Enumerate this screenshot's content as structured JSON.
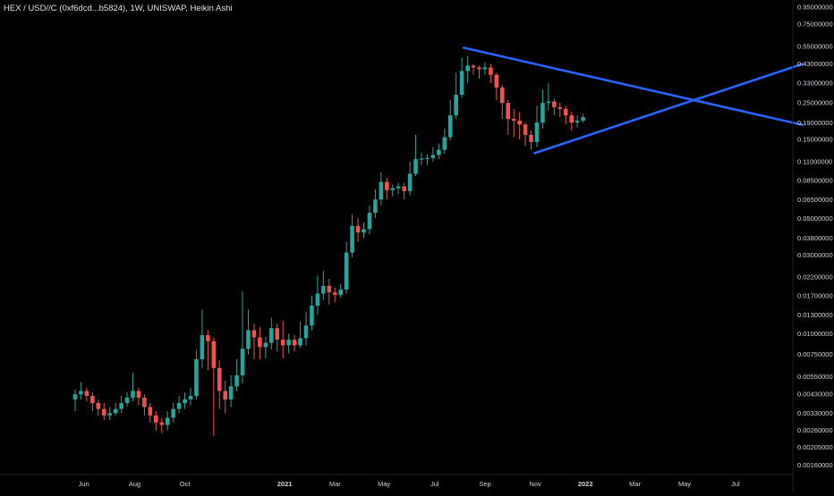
{
  "chart_data": {
    "type": "candlestick",
    "title": "HEX / USD//C (0xf6dcd...b5824), 1W, UNISWAP, Heikin Ashi",
    "y_scale": "log",
    "ylim": [
      0.00142,
      1.05
    ],
    "y_ticks": [
      "0.95000000",
      "0.75000000",
      "0.55000000",
      "0.43000000",
      "0.33000000",
      "0.25000000",
      "0.19000000",
      "0.15000000",
      "0.11000000",
      "0.08500000",
      "0.06500000",
      "0.05000000",
      "0.03800000",
      "0.03000000",
      "0.02200000",
      "0.01700000",
      "0.01300000",
      "0.01000000",
      "0.00750000",
      "0.00550000",
      "0.00430000",
      "0.00330000",
      "0.00260000",
      "0.00205000",
      "0.00160000"
    ],
    "x_ticks": [
      {
        "label": "Jun",
        "bold": false
      },
      {
        "label": "Aug",
        "bold": false
      },
      {
        "label": "Oct",
        "bold": false
      },
      {
        "label": "2021",
        "bold": true
      },
      {
        "label": "Mar",
        "bold": false
      },
      {
        "label": "May",
        "bold": false
      },
      {
        "label": "Jul",
        "bold": false
      },
      {
        "label": "Sep",
        "bold": false
      },
      {
        "label": "Nov",
        "bold": false
      },
      {
        "label": "2022",
        "bold": true
      },
      {
        "label": "Mar",
        "bold": false
      },
      {
        "label": "May",
        "bold": false
      },
      {
        "label": "Jul",
        "bold": false
      }
    ],
    "colors": {
      "up": "#26a69a",
      "down": "#ef5350",
      "trendline": "#2962ff",
      "background": "#000000"
    },
    "candles": [
      [
        0.004,
        0.0043,
        0.0046,
        0.0034
      ],
      [
        0.0043,
        0.0045,
        0.0051,
        0.004
      ],
      [
        0.0045,
        0.0042,
        0.0047,
        0.0039
      ],
      [
        0.0042,
        0.0038,
        0.0044,
        0.0034
      ],
      [
        0.0038,
        0.0035,
        0.004,
        0.0032
      ],
      [
        0.0035,
        0.0032,
        0.0038,
        0.003
      ],
      [
        0.0032,
        0.0033,
        0.0036,
        0.003
      ],
      [
        0.0033,
        0.0035,
        0.0038,
        0.0032
      ],
      [
        0.0035,
        0.0038,
        0.0042,
        0.0033
      ],
      [
        0.0038,
        0.0041,
        0.0044,
        0.0036
      ],
      [
        0.0041,
        0.0045,
        0.0058,
        0.0039
      ],
      [
        0.0045,
        0.0041,
        0.0047,
        0.0037
      ],
      [
        0.0041,
        0.0036,
        0.0043,
        0.0032
      ],
      [
        0.0036,
        0.0032,
        0.0038,
        0.0029
      ],
      [
        0.0032,
        0.0029,
        0.0034,
        0.0026
      ],
      [
        0.0029,
        0.0028,
        0.0031,
        0.0025
      ],
      [
        0.0028,
        0.0031,
        0.0034,
        0.0026
      ],
      [
        0.0031,
        0.0035,
        0.0038,
        0.0029
      ],
      [
        0.0035,
        0.0038,
        0.0042,
        0.0033
      ],
      [
        0.0038,
        0.004,
        0.0044,
        0.0035
      ],
      [
        0.004,
        0.0042,
        0.0047,
        0.0037
      ],
      [
        0.0042,
        0.007,
        0.008,
        0.004
      ],
      [
        0.007,
        0.0098,
        0.014,
        0.0062
      ],
      [
        0.0098,
        0.009,
        0.0105,
        0.006
      ],
      [
        0.009,
        0.0062,
        0.0095,
        0.0024
      ],
      [
        0.0062,
        0.0045,
        0.0069,
        0.0035
      ],
      [
        0.0045,
        0.004,
        0.0052,
        0.0033
      ],
      [
        0.004,
        0.0048,
        0.0056,
        0.0036
      ],
      [
        0.0048,
        0.0056,
        0.007,
        0.0045
      ],
      [
        0.0056,
        0.0081,
        0.018,
        0.005
      ],
      [
        0.0081,
        0.0105,
        0.014,
        0.0075
      ],
      [
        0.0105,
        0.0095,
        0.0115,
        0.007
      ],
      [
        0.0095,
        0.0083,
        0.011,
        0.007
      ],
      [
        0.0083,
        0.0088,
        0.0096,
        0.0071
      ],
      [
        0.0088,
        0.0108,
        0.0125,
        0.008
      ],
      [
        0.0108,
        0.0092,
        0.0115,
        0.0078
      ],
      [
        0.0092,
        0.0085,
        0.012,
        0.0071
      ],
      [
        0.0085,
        0.0092,
        0.01,
        0.0076
      ],
      [
        0.0092,
        0.0085,
        0.0098,
        0.0078
      ],
      [
        0.0085,
        0.0094,
        0.0118,
        0.0082
      ],
      [
        0.0094,
        0.0112,
        0.0135,
        0.0085
      ],
      [
        0.0112,
        0.0148,
        0.017,
        0.0105
      ],
      [
        0.0148,
        0.0175,
        0.0225,
        0.013
      ],
      [
        0.0175,
        0.0195,
        0.024,
        0.016
      ],
      [
        0.0195,
        0.0178,
        0.0215,
        0.015
      ],
      [
        0.0178,
        0.0172,
        0.019,
        0.0155
      ],
      [
        0.0172,
        0.0185,
        0.02,
        0.0165
      ],
      [
        0.0185,
        0.031,
        0.036,
        0.0175
      ],
      [
        0.031,
        0.045,
        0.053,
        0.029
      ],
      [
        0.045,
        0.041,
        0.05,
        0.036
      ],
      [
        0.041,
        0.043,
        0.047,
        0.038
      ],
      [
        0.043,
        0.054,
        0.06,
        0.04
      ],
      [
        0.054,
        0.065,
        0.075,
        0.05
      ],
      [
        0.065,
        0.083,
        0.095,
        0.06
      ],
      [
        0.083,
        0.074,
        0.088,
        0.065
      ],
      [
        0.074,
        0.076,
        0.08,
        0.068
      ],
      [
        0.076,
        0.078,
        0.082,
        0.07
      ],
      [
        0.078,
        0.073,
        0.082,
        0.065
      ],
      [
        0.073,
        0.093,
        0.11,
        0.069
      ],
      [
        0.093,
        0.114,
        0.16,
        0.09
      ],
      [
        0.114,
        0.115,
        0.125,
        0.105
      ],
      [
        0.115,
        0.116,
        0.122,
        0.105
      ],
      [
        0.116,
        0.121,
        0.135,
        0.11
      ],
      [
        0.121,
        0.13,
        0.142,
        0.114
      ],
      [
        0.13,
        0.155,
        0.175,
        0.123
      ],
      [
        0.155,
        0.21,
        0.26,
        0.148
      ],
      [
        0.21,
        0.28,
        0.38,
        0.2
      ],
      [
        0.28,
        0.39,
        0.47,
        0.27
      ],
      [
        0.39,
        0.42,
        0.48,
        0.33
      ],
      [
        0.42,
        0.41,
        0.43,
        0.37
      ],
      [
        0.41,
        0.4,
        0.42,
        0.35
      ],
      [
        0.4,
        0.41,
        0.44,
        0.37
      ],
      [
        0.41,
        0.37,
        0.43,
        0.33
      ],
      [
        0.37,
        0.31,
        0.38,
        0.26
      ],
      [
        0.31,
        0.25,
        0.32,
        0.2
      ],
      [
        0.25,
        0.2,
        0.26,
        0.16
      ],
      [
        0.2,
        0.195,
        0.23,
        0.155
      ],
      [
        0.195,
        0.185,
        0.22,
        0.15
      ],
      [
        0.185,
        0.16,
        0.19,
        0.137
      ],
      [
        0.16,
        0.145,
        0.17,
        0.13
      ],
      [
        0.145,
        0.19,
        0.24,
        0.135
      ],
      [
        0.19,
        0.25,
        0.3,
        0.175
      ],
      [
        0.25,
        0.255,
        0.33,
        0.225
      ],
      [
        0.255,
        0.235,
        0.265,
        0.21
      ],
      [
        0.235,
        0.23,
        0.25,
        0.205
      ],
      [
        0.23,
        0.21,
        0.24,
        0.185
      ],
      [
        0.21,
        0.19,
        0.22,
        0.17
      ],
      [
        0.19,
        0.195,
        0.21,
        0.177
      ],
      [
        0.195,
        0.205,
        0.215,
        0.19
      ]
    ],
    "trendlines": [
      {
        "from_week": 67.3,
        "from_value": 0.54,
        "to_week": 126,
        "to_value": 0.184
      },
      {
        "from_week": 79.6,
        "from_value": 0.124,
        "to_week": 126,
        "to_value": 0.43
      }
    ]
  }
}
